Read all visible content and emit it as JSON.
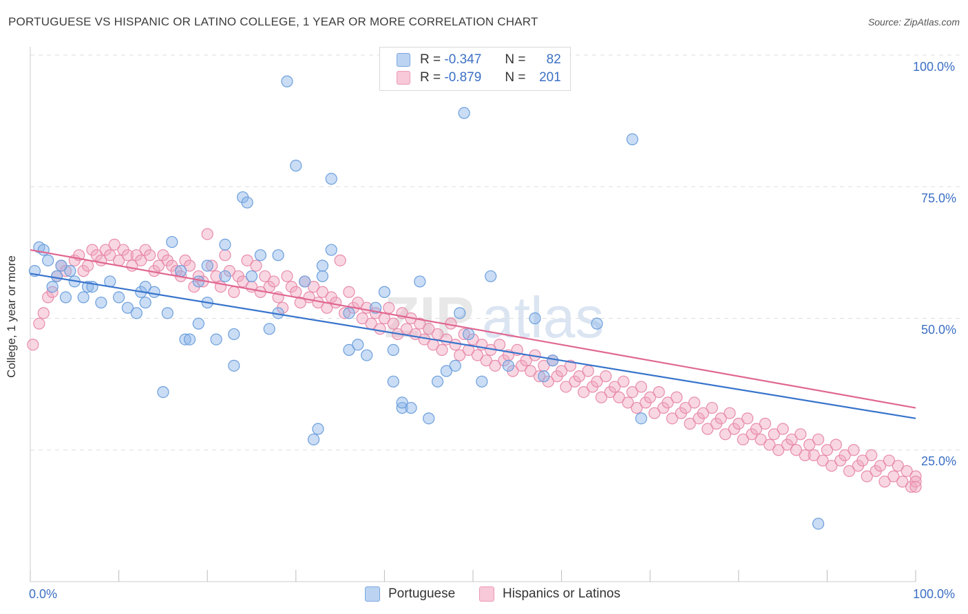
{
  "header": {
    "title": "PORTUGUESE VS HISPANIC OR LATINO COLLEGE, 1 YEAR OR MORE CORRELATION CHART",
    "source": "Source: ZipAtlas.com"
  },
  "legend_top": {
    "rows": [
      {
        "r_label": "R =",
        "r_value": "-0.347",
        "n_label": "N =",
        "n_value": "82"
      },
      {
        "r_label": "R =",
        "r_value": "-0.879",
        "n_label": "N =",
        "n_value": "201"
      }
    ]
  },
  "bottom_legend": {
    "items": [
      {
        "label": "Portuguese"
      },
      {
        "label": "Hispanics or Latinos"
      }
    ]
  },
  "chart_data": {
    "type": "scatter",
    "title": "PORTUGUESE VS HISPANIC OR LATINO COLLEGE, 1 YEAR OR MORE CORRELATION CHART",
    "xlabel": "",
    "ylabel": "College, 1 year or more",
    "x_tick_labels": [
      "0.0%",
      "100.0%"
    ],
    "y_tick_labels": [
      "100.0%",
      "75.0%",
      "50.0%",
      "25.0%"
    ],
    "xlim": [
      0,
      100
    ],
    "ylim": [
      0,
      100
    ],
    "grid": true,
    "legend_position": "top-center",
    "colors": {
      "portuguese": "#8ab4e8",
      "portuguese_line": "#3673cc",
      "hispanic": "#f0a6bf",
      "hispanic_line": "#e06690"
    },
    "series": [
      {
        "name": "Portuguese",
        "r": -0.347,
        "n": 82,
        "trend": {
          "x": [
            0,
            100
          ],
          "y": [
            58.5,
            31.0
          ]
        },
        "points": [
          [
            0.5,
            59.0
          ],
          [
            1,
            63.5
          ],
          [
            1.5,
            63
          ],
          [
            2,
            61
          ],
          [
            2.5,
            56
          ],
          [
            3,
            58
          ],
          [
            3.5,
            60
          ],
          [
            4,
            54
          ],
          [
            4.5,
            59
          ],
          [
            5,
            57
          ],
          [
            6,
            54
          ],
          [
            6.5,
            56
          ],
          [
            7,
            56
          ],
          [
            8,
            53
          ],
          [
            9,
            57
          ],
          [
            10,
            54
          ],
          [
            11,
            52
          ],
          [
            12,
            51
          ],
          [
            12.5,
            55
          ],
          [
            13,
            56
          ],
          [
            13,
            53
          ],
          [
            14,
            55
          ],
          [
            15,
            36
          ],
          [
            15.5,
            51
          ],
          [
            16,
            64.5
          ],
          [
            17,
            59
          ],
          [
            17.5,
            46
          ],
          [
            18,
            46
          ],
          [
            19,
            57
          ],
          [
            19,
            49
          ],
          [
            20,
            53
          ],
          [
            20,
            60
          ],
          [
            21,
            46
          ],
          [
            22,
            58
          ],
          [
            22,
            64
          ],
          [
            23,
            47
          ],
          [
            23,
            41
          ],
          [
            24,
            73
          ],
          [
            24.5,
            72
          ],
          [
            25,
            58
          ],
          [
            26,
            62
          ],
          [
            27,
            48
          ],
          [
            28,
            62
          ],
          [
            28,
            51
          ],
          [
            29,
            95
          ],
          [
            30,
            79
          ],
          [
            31,
            57
          ],
          [
            32,
            27
          ],
          [
            32.5,
            29
          ],
          [
            33,
            60
          ],
          [
            33,
            58
          ],
          [
            34,
            76.5
          ],
          [
            34,
            63
          ],
          [
            36,
            51
          ],
          [
            36,
            44
          ],
          [
            37,
            45
          ],
          [
            38,
            43
          ],
          [
            39,
            52
          ],
          [
            40,
            55
          ],
          [
            41,
            44
          ],
          [
            41,
            38
          ],
          [
            42,
            33
          ],
          [
            42,
            34
          ],
          [
            43,
            33
          ],
          [
            44,
            57
          ],
          [
            45,
            31
          ],
          [
            46,
            38
          ],
          [
            47,
            40
          ],
          [
            48,
            41
          ],
          [
            48.5,
            51
          ],
          [
            49,
            89
          ],
          [
            49.5,
            47
          ],
          [
            51,
            38
          ],
          [
            52,
            58
          ],
          [
            54,
            41
          ],
          [
            57,
            50
          ],
          [
            58,
            39
          ],
          [
            59,
            42
          ],
          [
            64,
            49
          ],
          [
            68,
            84
          ],
          [
            69,
            31
          ],
          [
            89,
            11
          ]
        ]
      },
      {
        "name": "Hispanics or Latinos",
        "r": -0.879,
        "n": 201,
        "trend": {
          "x": [
            0,
            100
          ],
          "y": [
            63.0,
            33.0
          ]
        },
        "points": [
          [
            0.3,
            45
          ],
          [
            1,
            49
          ],
          [
            1.5,
            51
          ],
          [
            2,
            54
          ],
          [
            2.5,
            55
          ],
          [
            3,
            58
          ],
          [
            3.5,
            60
          ],
          [
            4,
            59
          ],
          [
            5,
            61
          ],
          [
            5.5,
            62
          ],
          [
            6,
            59
          ],
          [
            6.5,
            60
          ],
          [
            7,
            63
          ],
          [
            7.5,
            62
          ],
          [
            8,
            61
          ],
          [
            8.5,
            63
          ],
          [
            9,
            62
          ],
          [
            9.5,
            64
          ],
          [
            10,
            61
          ],
          [
            10.5,
            63
          ],
          [
            11,
            62
          ],
          [
            11.5,
            60
          ],
          [
            12,
            62
          ],
          [
            12.5,
            61
          ],
          [
            13,
            63
          ],
          [
            13.5,
            62
          ],
          [
            14,
            59
          ],
          [
            14.5,
            60
          ],
          [
            15,
            62
          ],
          [
            15.5,
            61
          ],
          [
            16,
            60
          ],
          [
            16.5,
            59
          ],
          [
            17,
            58
          ],
          [
            17.5,
            61
          ],
          [
            18,
            60
          ],
          [
            18.5,
            56
          ],
          [
            19,
            58
          ],
          [
            19.5,
            57
          ],
          [
            20,
            66
          ],
          [
            20.5,
            60
          ],
          [
            21,
            58
          ],
          [
            21.5,
            56
          ],
          [
            22,
            62
          ],
          [
            22.5,
            59
          ],
          [
            23,
            55
          ],
          [
            23.5,
            58
          ],
          [
            24,
            57
          ],
          [
            24.5,
            61
          ],
          [
            25,
            56
          ],
          [
            25.5,
            60
          ],
          [
            26,
            55
          ],
          [
            26.5,
            58
          ],
          [
            27,
            56
          ],
          [
            27.5,
            57
          ],
          [
            28,
            54
          ],
          [
            28.5,
            52
          ],
          [
            29,
            58
          ],
          [
            29.5,
            56
          ],
          [
            30,
            55
          ],
          [
            30.5,
            53
          ],
          [
            31,
            57
          ],
          [
            31.5,
            54
          ],
          [
            32,
            56
          ],
          [
            32.5,
            53
          ],
          [
            33,
            55
          ],
          [
            33.5,
            52
          ],
          [
            34,
            54
          ],
          [
            34.5,
            53
          ],
          [
            35,
            61
          ],
          [
            35.5,
            51
          ],
          [
            36,
            55
          ],
          [
            36.5,
            52
          ],
          [
            37,
            53
          ],
          [
            37.5,
            50
          ],
          [
            38,
            52
          ],
          [
            38.5,
            49
          ],
          [
            39,
            51
          ],
          [
            39.5,
            48
          ],
          [
            40,
            50
          ],
          [
            40.5,
            52
          ],
          [
            41,
            49
          ],
          [
            41.5,
            47
          ],
          [
            42,
            51
          ],
          [
            42.5,
            48
          ],
          [
            43,
            50
          ],
          [
            43.5,
            47
          ],
          [
            44,
            49
          ],
          [
            44.5,
            46
          ],
          [
            45,
            48
          ],
          [
            45.5,
            45
          ],
          [
            46,
            47
          ],
          [
            46.5,
            44
          ],
          [
            47,
            46
          ],
          [
            47.5,
            49
          ],
          [
            48,
            45
          ],
          [
            48.5,
            43
          ],
          [
            49,
            47
          ],
          [
            49.5,
            44
          ],
          [
            50,
            46
          ],
          [
            50.5,
            43
          ],
          [
            51,
            45
          ],
          [
            51.5,
            42
          ],
          [
            52,
            44
          ],
          [
            52.5,
            41
          ],
          [
            53,
            45
          ],
          [
            53.5,
            42
          ],
          [
            54,
            43
          ],
          [
            54.5,
            40
          ],
          [
            55,
            44
          ],
          [
            55.5,
            41
          ],
          [
            56,
            42
          ],
          [
            56.5,
            40
          ],
          [
            57,
            43
          ],
          [
            57.5,
            39
          ],
          [
            58,
            41
          ],
          [
            58.5,
            38
          ],
          [
            59,
            42
          ],
          [
            59.5,
            39
          ],
          [
            60,
            40
          ],
          [
            60.5,
            37
          ],
          [
            61,
            41
          ],
          [
            61.5,
            38
          ],
          [
            62,
            39
          ],
          [
            62.5,
            36
          ],
          [
            63,
            40
          ],
          [
            63.5,
            37
          ],
          [
            64,
            38
          ],
          [
            64.5,
            35
          ],
          [
            65,
            39
          ],
          [
            65.5,
            36
          ],
          [
            66,
            37
          ],
          [
            66.5,
            35
          ],
          [
            67,
            38
          ],
          [
            67.5,
            34
          ],
          [
            68,
            36
          ],
          [
            68.5,
            33
          ],
          [
            69,
            37
          ],
          [
            69.5,
            34
          ],
          [
            70,
            35
          ],
          [
            70.5,
            32
          ],
          [
            71,
            36
          ],
          [
            71.5,
            33
          ],
          [
            72,
            34
          ],
          [
            72.5,
            31
          ],
          [
            73,
            35
          ],
          [
            73.5,
            32
          ],
          [
            74,
            33
          ],
          [
            74.5,
            30
          ],
          [
            75,
            34
          ],
          [
            75.5,
            31
          ],
          [
            76,
            32
          ],
          [
            76.5,
            29
          ],
          [
            77,
            33
          ],
          [
            77.5,
            30
          ],
          [
            78,
            31
          ],
          [
            78.5,
            28
          ],
          [
            79,
            32
          ],
          [
            79.5,
            29
          ],
          [
            80,
            30
          ],
          [
            80.5,
            27
          ],
          [
            81,
            31
          ],
          [
            81.5,
            28
          ],
          [
            82,
            29
          ],
          [
            82.5,
            27
          ],
          [
            83,
            30
          ],
          [
            83.5,
            26
          ],
          [
            84,
            28
          ],
          [
            84.5,
            25
          ],
          [
            85,
            29
          ],
          [
            85.5,
            26
          ],
          [
            86,
            27
          ],
          [
            86.5,
            25
          ],
          [
            87,
            28
          ],
          [
            87.5,
            24
          ],
          [
            88,
            26
          ],
          [
            88.5,
            24
          ],
          [
            89,
            27
          ],
          [
            89.5,
            23
          ],
          [
            90,
            25
          ],
          [
            90.5,
            22
          ],
          [
            91,
            26
          ],
          [
            91.5,
            23
          ],
          [
            92,
            24
          ],
          [
            92.5,
            21
          ],
          [
            93,
            25
          ],
          [
            93.5,
            22
          ],
          [
            94,
            23
          ],
          [
            94.5,
            20
          ],
          [
            95,
            24
          ],
          [
            95.5,
            21
          ],
          [
            96,
            22
          ],
          [
            96.5,
            19
          ],
          [
            97,
            23
          ],
          [
            97.5,
            20
          ],
          [
            98,
            22
          ],
          [
            98.5,
            19
          ],
          [
            99,
            21
          ],
          [
            99.5,
            18
          ],
          [
            100,
            20
          ],
          [
            100,
            19
          ],
          [
            100,
            18
          ]
        ]
      }
    ]
  }
}
